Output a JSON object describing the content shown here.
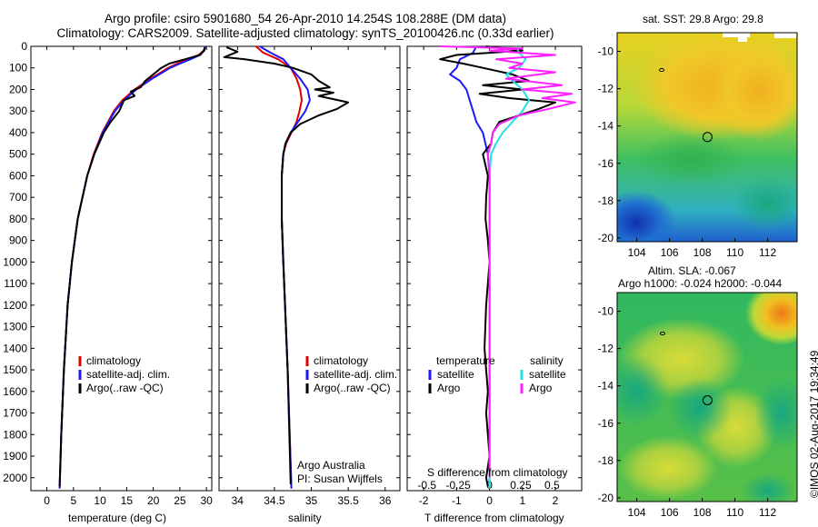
{
  "header": {
    "line1": "Argo profile: csiro 5901680_54 26-Apr-2010 14.254S 108.288E (DM data)",
    "line2": "Climatology: CARS2009. Satellite-adjusted climatology: synTS_20100426.nc (0.33d earlier)"
  },
  "footer": {
    "stamp": "©IMOS 02-Aug-2017 19:34:49"
  },
  "colors": {
    "climatology": "#e00000",
    "satellite": "#1a1aff",
    "argo": "#000000",
    "sal_satellite": "#22e0e0",
    "sal_argo": "#ff22ff"
  },
  "chart_data": [
    {
      "type": "line",
      "id": "temperature",
      "xlabel": "temperature (deg C)",
      "ylabel": "",
      "xlim": [
        -3,
        31
      ],
      "ylim": [
        2060,
        0
      ],
      "xticks": [
        0,
        5,
        10,
        15,
        20,
        25,
        30
      ],
      "yticks": [
        0,
        100,
        200,
        300,
        400,
        500,
        600,
        700,
        800,
        900,
        1000,
        1100,
        1200,
        1300,
        1400,
        1500,
        1600,
        1700,
        1800,
        1900,
        2000
      ],
      "legend": [
        "climatology",
        "satellite-adj. clim.",
        "Argo(..raw -QC)"
      ],
      "series": [
        {
          "name": "climatology",
          "color_key": "climatology",
          "depth": [
            0,
            20,
            40,
            60,
            80,
            100,
            150,
            200,
            250,
            300,
            400,
            500,
            600,
            800,
            1000,
            1200,
            1500,
            1800,
            2050
          ],
          "values": [
            29.8,
            29.5,
            28.5,
            26.5,
            24.5,
            22.8,
            19.5,
            16.5,
            14.2,
            12.6,
            10.4,
            8.8,
            7.6,
            5.8,
            4.7,
            3.9,
            3.2,
            2.7,
            2.4
          ]
        },
        {
          "name": "satellite-adj. clim.",
          "color_key": "satellite",
          "depth": [
            0,
            20,
            40,
            60,
            80,
            100,
            150,
            200,
            250,
            300,
            400,
            500,
            600,
            800,
            1000,
            1200,
            1500,
            1800,
            2050
          ],
          "values": [
            29.8,
            29.6,
            28.8,
            27.0,
            25.0,
            23.2,
            19.8,
            16.8,
            14.5,
            12.8,
            10.5,
            8.9,
            7.6,
            5.8,
            4.7,
            3.9,
            3.2,
            2.7,
            2.4
          ]
        },
        {
          "name": "Argo(..raw -QC)",
          "color_key": "argo",
          "depth": [
            4,
            20,
            40,
            60,
            80,
            100,
            130,
            160,
            190,
            210,
            230,
            250,
            300,
            350,
            400,
            500,
            600,
            800,
            1000,
            1200,
            1500,
            1800,
            2040
          ],
          "values": [
            29.7,
            29.5,
            28.8,
            26.0,
            23.0,
            21.5,
            20.0,
            18.5,
            17.6,
            15.8,
            16.5,
            14.5,
            13.6,
            12.0,
            10.7,
            8.9,
            7.6,
            5.8,
            4.7,
            3.9,
            3.2,
            2.7,
            2.4
          ]
        }
      ]
    },
    {
      "type": "line",
      "id": "salinity",
      "xlabel": "salinity",
      "xlim": [
        33.75,
        36.2
      ],
      "ylim": [
        2060,
        0
      ],
      "xticks": [
        34,
        34.5,
        35,
        35.5,
        36
      ],
      "legend": [
        "climatology",
        "satellite-adj. clim.",
        "Argo(..raw -QC)"
      ],
      "credit": [
        "Argo Australia",
        "PI: Susan Wijffels"
      ],
      "series": [
        {
          "name": "climatology",
          "color_key": "climatology",
          "depth": [
            0,
            30,
            60,
            100,
            150,
            200,
            250,
            300,
            350,
            400,
            450,
            500,
            600,
            800,
            1000,
            1500,
            2050
          ],
          "values": [
            34.25,
            34.35,
            34.55,
            34.72,
            34.8,
            34.85,
            34.87,
            34.84,
            34.8,
            34.73,
            34.66,
            34.62,
            34.6,
            34.6,
            34.62,
            34.68,
            34.73
          ]
        },
        {
          "name": "satellite-adj. clim.",
          "color_key": "satellite",
          "depth": [
            0,
            30,
            60,
            100,
            150,
            200,
            250,
            300,
            350,
            400,
            450,
            500,
            600,
            800,
            1000,
            1500,
            2050
          ],
          "values": [
            34.3,
            34.45,
            34.62,
            34.72,
            34.85,
            34.95,
            34.98,
            34.92,
            34.82,
            34.72,
            34.65,
            34.62,
            34.6,
            34.6,
            34.62,
            34.68,
            34.73
          ]
        },
        {
          "name": "Argo(..raw -QC)",
          "color_key": "argo",
          "depth": [
            4,
            25,
            50,
            60,
            80,
            100,
            130,
            160,
            190,
            200,
            215,
            230,
            260,
            290,
            320,
            360,
            400,
            450,
            500,
            600,
            800,
            1000,
            1500,
            2030
          ],
          "values": [
            33.85,
            34.0,
            33.82,
            34.1,
            34.5,
            34.75,
            35.0,
            35.1,
            35.25,
            35.05,
            35.3,
            35.1,
            35.5,
            35.35,
            35.1,
            34.85,
            34.72,
            34.65,
            34.62,
            34.6,
            34.6,
            34.62,
            34.68,
            34.72
          ]
        }
      ]
    },
    {
      "type": "line",
      "id": "differences",
      "xlabel": "T difference from climatology",
      "toplabel": "S difference from climatology",
      "xlim": [
        -2.5,
        2.8
      ],
      "ylim": [
        2060,
        0
      ],
      "xticks": [
        -2,
        -1,
        0,
        1,
        2
      ],
      "s_ticks": [
        {
          "label": "-0.5",
          "t": -1.9
        },
        {
          "label": "-0.25",
          "t": -0.95
        },
        {
          "label": "0",
          "t": 0
        },
        {
          "label": "0.25",
          "t": 0.95
        },
        {
          "label": "0.5",
          "t": 1.9
        }
      ],
      "legend": {
        "temperature_header": "temperature",
        "salinity_header": "salinity",
        "items": [
          "satellite",
          "Argo",
          "satellite",
          "Argo"
        ]
      },
      "series": [
        {
          "name": "satellite",
          "group": "temperature",
          "color_key": "satellite",
          "depth": [
            0,
            30,
            60,
            100,
            130,
            160,
            200,
            250,
            300,
            350,
            400,
            500,
            600,
            800,
            1000,
            1500,
            2050
          ],
          "values": [
            -0.4,
            -0.5,
            -0.9,
            -1.0,
            -1.2,
            -0.9,
            -0.7,
            -0.6,
            -0.5,
            -0.4,
            -0.2,
            -0.05,
            0,
            0,
            0,
            0,
            0
          ]
        },
        {
          "name": "Argo",
          "group": "temperature",
          "color_key": "argo",
          "depth": [
            0,
            20,
            40,
            60,
            80,
            100,
            130,
            160,
            180,
            200,
            220,
            240,
            260,
            290,
            320,
            350,
            400,
            450,
            500,
            600,
            700,
            800,
            900,
            1000,
            1200,
            1400,
            1500,
            1600,
            1700,
            1800,
            1900,
            2000,
            2040
          ],
          "values": [
            -0.1,
            1.0,
            -1.0,
            -1.5,
            -0.8,
            -0.2,
            0.7,
            1.2,
            -0.2,
            1.0,
            -0.3,
            0.6,
            2.0,
            1.5,
            0.9,
            0.3,
            0.1,
            0.05,
            -0.2,
            -0.05,
            -0.1,
            -0.12,
            -0.05,
            0.0,
            -0.1,
            -0.15,
            -0.1,
            -0.05,
            -0.1,
            -0.05,
            0.0,
            -0.1,
            -0.05
          ]
        },
        {
          "name": "satellite",
          "group": "salinity",
          "color_key": "sal_satellite",
          "depth": [
            0,
            30,
            60,
            100,
            130,
            160,
            200,
            250,
            300,
            350,
            400,
            450,
            500,
            600,
            800,
            1000,
            1500,
            2050
          ],
          "values": [
            0.8,
            0.9,
            1.1,
            0.9,
            0.5,
            0.7,
            1.0,
            1.2,
            1.0,
            0.7,
            0.4,
            0.2,
            0.05,
            0,
            0,
            0,
            0,
            0
          ]
        },
        {
          "name": "Argo",
          "group": "salinity",
          "color_key": "sal_argo",
          "depth": [
            0,
            10,
            20,
            40,
            60,
            80,
            100,
            120,
            150,
            180,
            200,
            220,
            240,
            260,
            290,
            320,
            360,
            400,
            450,
            500,
            600,
            800,
            1000,
            1500,
            2000
          ],
          "values": [
            -1.5,
            1.0,
            0.0,
            2.0,
            0.2,
            1.0,
            0.6,
            2.0,
            0.5,
            2.2,
            1.0,
            2.5,
            1.6,
            2.6,
            1.8,
            0.9,
            0.3,
            0.1,
            0.05,
            -0.05,
            0.0,
            0.0,
            0.0,
            0.0,
            0.0
          ]
        }
      ]
    }
  ],
  "maps": {
    "sst": {
      "title": "sat. SST: 29.8 Argo: 29.8",
      "xticks": [
        "104",
        "106",
        "108",
        "110",
        "112"
      ],
      "yticks": [
        "-10",
        "-12",
        "-14",
        "-16",
        "-18",
        "-20"
      ],
      "profile_lon": 108.288,
      "profile_lat": -14.254
    },
    "sla": {
      "title1": "Altim. SLA: -0.067",
      "title2": "Argo h1000: -0.024 h2000: -0.044",
      "xticks": [
        "104",
        "106",
        "108",
        "110",
        "112"
      ],
      "yticks": [
        "-10",
        "-12",
        "-14",
        "-16",
        "-18",
        "-20"
      ],
      "profile_lon": 108.288,
      "profile_lat": -14.254
    }
  }
}
